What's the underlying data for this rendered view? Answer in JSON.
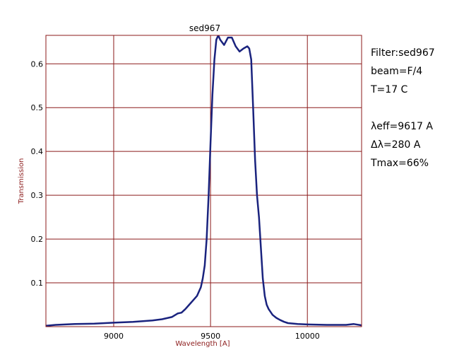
{
  "chart_data": {
    "type": "line",
    "title": "sed967",
    "xlabel": "Wavelength [A]",
    "ylabel": "Transmission",
    "xlim": [
      8650,
      10280
    ],
    "ylim": [
      0.0,
      0.665
    ],
    "xticks": [
      9000,
      9500,
      10000
    ],
    "yticks": [
      0.1,
      0.2,
      0.3,
      0.4,
      0.5,
      0.6
    ],
    "ytick_labels": [
      "0.1",
      "0.2",
      "0.3",
      "0.4",
      "0.5",
      "0.6"
    ],
    "grid": true,
    "colors": {
      "line": "#1a237e",
      "grid": "#8b1a1a",
      "frame": "#8b1a1a"
    },
    "series": [
      {
        "x": [
          8650,
          8700,
          8800,
          8900,
          9000,
          9100,
          9200,
          9250,
          9300,
          9330,
          9350,
          9370,
          9390,
          9410,
          9430,
          9450,
          9460,
          9470,
          9480,
          9490,
          9500,
          9510,
          9520,
          9530,
          9540,
          9550,
          9570,
          9590,
          9610,
          9630,
          9650,
          9670,
          9690,
          9700,
          9710,
          9720,
          9730,
          9740,
          9750,
          9760,
          9770,
          9780,
          9790,
          9800,
          9820,
          9840,
          9860,
          9880,
          9900,
          9950,
          10000,
          10100,
          10200,
          10240,
          10280
        ],
        "y": [
          0.002,
          0.004,
          0.006,
          0.007,
          0.009,
          0.011,
          0.014,
          0.017,
          0.022,
          0.03,
          0.032,
          0.04,
          0.05,
          0.06,
          0.07,
          0.09,
          0.11,
          0.14,
          0.2,
          0.3,
          0.42,
          0.53,
          0.61,
          0.655,
          0.665,
          0.655,
          0.643,
          0.66,
          0.66,
          0.64,
          0.628,
          0.635,
          0.64,
          0.635,
          0.61,
          0.5,
          0.38,
          0.3,
          0.25,
          0.18,
          0.11,
          0.07,
          0.05,
          0.04,
          0.027,
          0.02,
          0.015,
          0.011,
          0.008,
          0.006,
          0.005,
          0.004,
          0.004,
          0.006,
          0.003
        ]
      }
    ]
  },
  "info_panel": {
    "filter": "Filter:sed967",
    "beam": "beam=F/4",
    "temperature": "T=17 C",
    "lambda_eff": "λeff=9617 A",
    "delta_lambda": "Δλ=280 A",
    "tmax": "Tmax=66%"
  }
}
